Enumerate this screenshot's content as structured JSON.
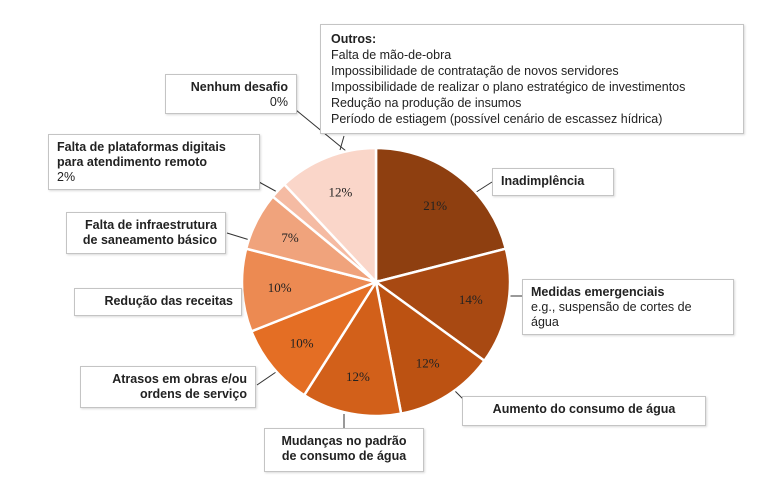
{
  "chart_data": {
    "type": "pie",
    "slices": [
      {
        "label": "Inadimplência",
        "value": 21,
        "value_label": "21%",
        "color": "#8e3f10"
      },
      {
        "label": "Medidas emergenciais",
        "sublabel": "e.g., suspensão de cortes de água",
        "value": 14,
        "value_label": "14%",
        "color": "#a84912"
      },
      {
        "label": "Aumento do consumo de água",
        "value": 12,
        "value_label": "12%",
        "color": "#bc5212"
      },
      {
        "label": "Mudanças no padrão de consumo de água",
        "value": 12,
        "value_label": "12%",
        "color": "#d2601a"
      },
      {
        "label": "Atrasos em obras e/ou ordens de serviço",
        "value": 10,
        "value_label": "10%",
        "color": "#e46e24"
      },
      {
        "label": "Redução das receitas",
        "value": 10,
        "value_label": "10%",
        "color": "#ec8a52"
      },
      {
        "label": "Falta de infraestrutura de saneamento básico",
        "value": 7,
        "value_label": "7%",
        "color": "#f0a37c"
      },
      {
        "label": "Falta de plataformas digitais para atendimento remoto",
        "value": 2,
        "value_label": "2%",
        "color": "#f5bba3"
      },
      {
        "label": "Outros",
        "value": 12,
        "value_label": "12%",
        "color": "#fad6c9"
      },
      {
        "label": "Nenhum desafio",
        "value": 0,
        "value_label": "0%",
        "color": "#ffffff"
      }
    ]
  },
  "callouts": {
    "outros": {
      "title": "Outros:",
      "lines": [
        "Falta de mão-de-obra",
        "Impossibilidade de contratação de novos servidores",
        "Impossibilidade de realizar o plano estratégico de investimentos",
        "Redução na produção de insumos",
        "Período de estiagem (possível cenário de escassez hídrica)"
      ]
    },
    "nenhum": {
      "line1": "Nenhum desafio",
      "line2": "0%"
    },
    "plataformas": {
      "line1": "Falta de plataformas digitais",
      "line2": "para atendimento remoto",
      "line3": "2%"
    },
    "infraestrutura": {
      "line1": "Falta de infraestrutura",
      "line2": "de saneamento básico"
    },
    "receitas": {
      "line1": "Redução das receitas"
    },
    "atrasos": {
      "line1": "Atrasos em obras e/ou",
      "line2": "ordens de serviço"
    },
    "mudancas": {
      "line1": "Mudanças no padrão",
      "line2": "de consumo de água"
    },
    "inadimplencia": {
      "line1": "Inadimplência"
    },
    "medidas": {
      "line1": "Medidas emergenciais",
      "line2": "e.g., suspensão de cortes de",
      "line3": "água"
    },
    "aumento": {
      "line1": "Aumento do consumo de água"
    }
  }
}
